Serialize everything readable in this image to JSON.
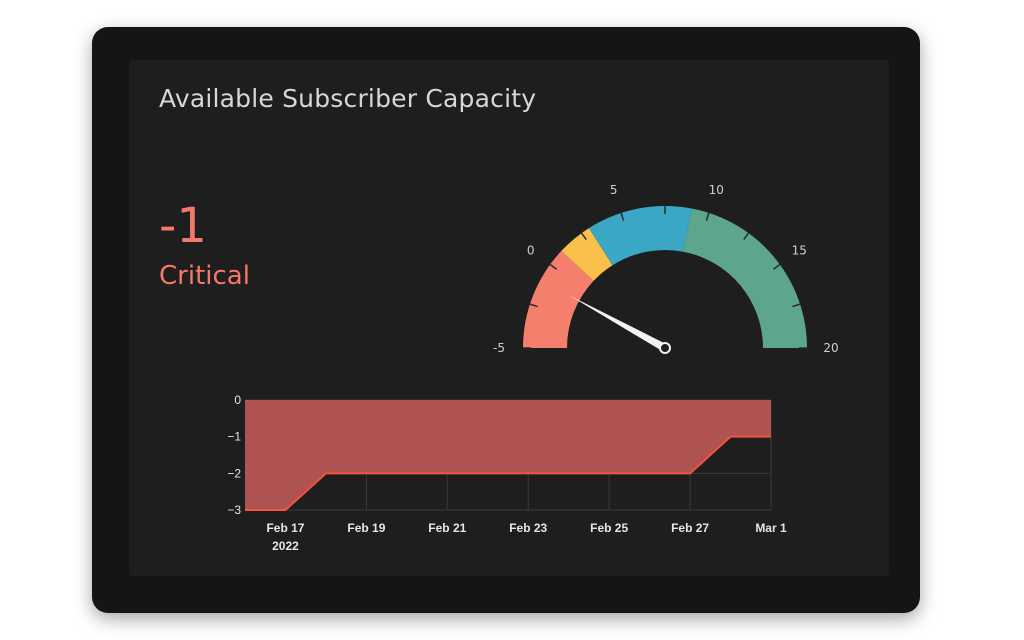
{
  "panel": {
    "title": "Available Subscriber Capacity",
    "value": "-1",
    "status": "Critical"
  },
  "gauge": {
    "min": -5,
    "max": 20,
    "value": -1,
    "tick_labels": [
      "-5",
      "0",
      "5",
      "10",
      "15",
      "20"
    ],
    "bands": [
      {
        "from": -5,
        "to": 1,
        "color": "#f47f6d"
      },
      {
        "from": 1,
        "to": 3,
        "color": "#f9c04c"
      },
      {
        "from": 3,
        "to": 9,
        "color": "#3aa8c4"
      },
      {
        "from": 9,
        "to": 20,
        "color": "#5ea68b"
      }
    ]
  },
  "chart_data": {
    "type": "area",
    "x": [
      "2022-02-16",
      "2022-02-17",
      "2022-02-18",
      "2022-02-19",
      "2022-02-20",
      "2022-02-21",
      "2022-02-22",
      "2022-02-23",
      "2022-02-24",
      "2022-02-25",
      "2022-02-26",
      "2022-02-27",
      "2022-02-28",
      "2022-03-01"
    ],
    "series": [
      {
        "values": [
          -3,
          -3,
          -2,
          -2,
          -2,
          -2,
          -2,
          -2,
          -2,
          -2,
          -2,
          -2,
          -1,
          -1
        ],
        "color": "#f4533d"
      }
    ],
    "x_ticks": [
      {
        "date": "2022-02-17",
        "label": "Feb 17",
        "sublabel": "2022"
      },
      {
        "date": "2022-02-19",
        "label": "Feb 19"
      },
      {
        "date": "2022-02-21",
        "label": "Feb 21"
      },
      {
        "date": "2022-02-23",
        "label": "Feb 23"
      },
      {
        "date": "2022-02-25",
        "label": "Feb 25"
      },
      {
        "date": "2022-02-27",
        "label": "Feb 27"
      },
      {
        "date": "2022-03-01",
        "label": "Mar 1"
      }
    ],
    "y_ticks": [
      "0",
      "−1",
      "−2",
      "−3"
    ],
    "ylim": [
      -3,
      0
    ],
    "xlim": [
      "2022-02-16",
      "2022-03-01"
    ],
    "grid": true,
    "fill_color": "#b75555"
  }
}
